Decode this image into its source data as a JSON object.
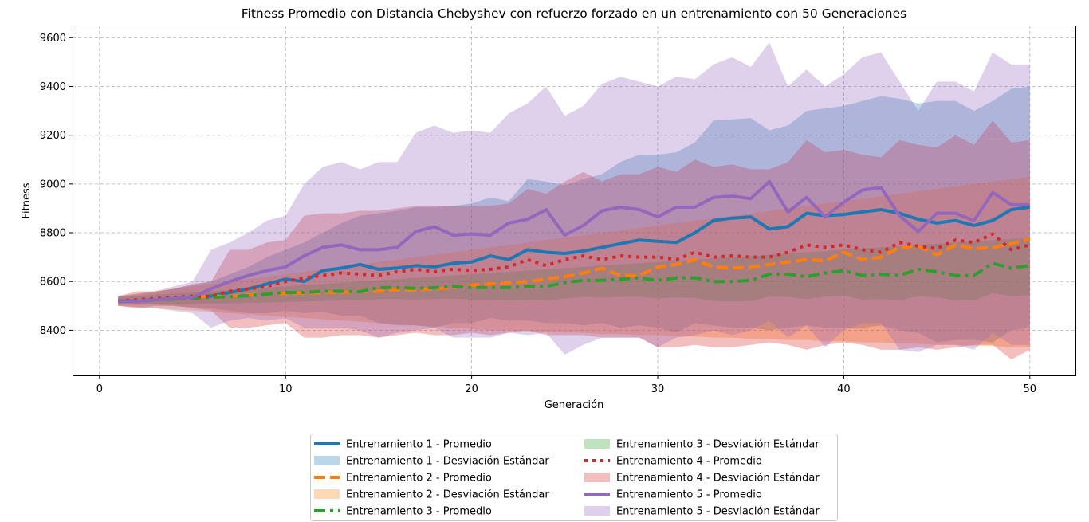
{
  "chart_data": {
    "type": "line",
    "title": "Fitness Promedio con Distancia Chebyshev con refuerzo forzado en un entrenamiento con 50 Generaciones",
    "xlabel": "Generación",
    "ylabel": "Fitness",
    "xlim": [
      -1.45,
      52.45
    ],
    "ylim": [
      8215,
      9650
    ],
    "xticks": [
      0,
      10,
      20,
      30,
      40,
      50
    ],
    "xtick_labels": [
      "0",
      "10",
      "20",
      "30",
      "40",
      "50"
    ],
    "yticks": [
      8400,
      8600,
      8800,
      9000,
      9200,
      9400,
      9600
    ],
    "ytick_labels": [
      "8400",
      "8600",
      "8800",
      "9000",
      "9200",
      "9400",
      "9600"
    ],
    "grid": true,
    "legend_position": "bottom-center-outside",
    "x": [
      1,
      2,
      3,
      4,
      5,
      6,
      7,
      8,
      9,
      10,
      11,
      12,
      13,
      14,
      15,
      16,
      17,
      18,
      19,
      20,
      21,
      22,
      23,
      24,
      25,
      26,
      27,
      28,
      29,
      30,
      31,
      32,
      33,
      34,
      35,
      36,
      37,
      38,
      39,
      40,
      41,
      42,
      43,
      44,
      45,
      46,
      47,
      48,
      49,
      50
    ],
    "series": [
      {
        "name": "Entrenamiento 1 - Promedio",
        "std_label": "Entrenamiento 1 - Desviación Estándar",
        "color": "#1f77b4",
        "dash": "solid",
        "mean": [
          8520,
          8520,
          8525,
          8530,
          8535,
          8540,
          8555,
          8570,
          8590,
          8610,
          8600,
          8645,
          8655,
          8670,
          8650,
          8655,
          8665,
          8660,
          8675,
          8680,
          8705,
          8690,
          8730,
          8720,
          8715,
          8725,
          8740,
          8755,
          8770,
          8765,
          8760,
          8800,
          8850,
          8860,
          8865,
          8815,
          8825,
          8880,
          8870,
          8875,
          8885,
          8895,
          8880,
          8855,
          8840,
          8850,
          8830,
          8850,
          8895,
          8905
        ],
        "upper": [
          8540,
          8545,
          8555,
          8570,
          8585,
          8600,
          8630,
          8660,
          8700,
          8730,
          8760,
          8800,
          8840,
          8870,
          8880,
          8890,
          8905,
          8905,
          8910,
          8920,
          8945,
          8930,
          9020,
          9010,
          8995,
          9020,
          9040,
          9090,
          9120,
          9120,
          9130,
          9170,
          9260,
          9265,
          9270,
          9220,
          9240,
          9300,
          9310,
          9320,
          9340,
          9360,
          9350,
          9330,
          9340,
          9340,
          9300,
          9340,
          9390,
          9400
        ],
        "lower": [
          8505,
          8505,
          8505,
          8500,
          8495,
          8490,
          8480,
          8470,
          8470,
          8480,
          8470,
          8475,
          8460,
          8460,
          8430,
          8420,
          8420,
          8410,
          8430,
          8430,
          8450,
          8440,
          8440,
          8430,
          8430,
          8420,
          8430,
          8410,
          8420,
          8410,
          8390,
          8430,
          8420,
          8410,
          8410,
          8400,
          8410,
          8420,
          8410,
          8410,
          8410,
          8420,
          8400,
          8390,
          8350,
          8360,
          8360,
          8350,
          8400,
          8410
        ]
      },
      {
        "name": "Entrenamiento 2 - Promedio",
        "std_label": "Entrenamiento 2 - Desviación Estándar",
        "color": "#ff7f0e",
        "dash": "dashed",
        "mean": [
          8520,
          8520,
          8525,
          8530,
          8535,
          8540,
          8540,
          8545,
          8548,
          8550,
          8552,
          8555,
          8555,
          8560,
          8560,
          8565,
          8565,
          8570,
          8575,
          8585,
          8590,
          8595,
          8600,
          8610,
          8620,
          8635,
          8655,
          8625,
          8625,
          8660,
          8670,
          8690,
          8660,
          8655,
          8660,
          8670,
          8680,
          8690,
          8685,
          8720,
          8690,
          8700,
          8740,
          8745,
          8710,
          8750,
          8735,
          8740,
          8755,
          8775
        ],
        "upper": [
          8540,
          8550,
          8560,
          8570,
          8580,
          8590,
          8600,
          8610,
          8620,
          8630,
          8640,
          8650,
          8660,
          8670,
          8680,
          8690,
          8700,
          8710,
          8720,
          8730,
          8740,
          8750,
          8760,
          8770,
          8780,
          8790,
          8800,
          8810,
          8820,
          8830,
          8840,
          8850,
          8860,
          8870,
          8880,
          8890,
          8900,
          8910,
          8920,
          8930,
          8940,
          8950,
          8960,
          8970,
          8980,
          8990,
          9000,
          9010,
          9020,
          9030
        ],
        "lower": [
          8500,
          8495,
          8490,
          8485,
          8480,
          8475,
          8470,
          8465,
          8460,
          8455,
          8450,
          8445,
          8440,
          8435,
          8430,
          8425,
          8420,
          8415,
          8410,
          8405,
          8400,
          8400,
          8395,
          8395,
          8390,
          8390,
          8385,
          8385,
          8380,
          8380,
          8375,
          8375,
          8370,
          8370,
          8365,
          8365,
          8360,
          8360,
          8355,
          8355,
          8350,
          8350,
          8345,
          8345,
          8340,
          8340,
          8335,
          8335,
          8330,
          8330
        ]
      },
      {
        "name": "Entrenamiento 3 - Promedio",
        "std_label": "Entrenamiento 3 - Desviación Estándar",
        "color": "#2ca02c",
        "dash": "dashdot",
        "mean": [
          8520,
          8520,
          8525,
          8528,
          8532,
          8535,
          8538,
          8542,
          8548,
          8555,
          8555,
          8560,
          8560,
          8558,
          8575,
          8575,
          8572,
          8575,
          8580,
          8575,
          8575,
          8575,
          8580,
          8580,
          8595,
          8605,
          8605,
          8610,
          8615,
          8605,
          8615,
          8615,
          8600,
          8600,
          8605,
          8630,
          8630,
          8620,
          8635,
          8645,
          8625,
          8630,
          8625,
          8650,
          8640,
          8625,
          8625,
          8675,
          8655,
          8665
        ],
        "upper": [
          8535,
          8540,
          8545,
          8550,
          8555,
          8560,
          8565,
          8570,
          8575,
          8580,
          8585,
          8590,
          8595,
          8600,
          8605,
          8610,
          8615,
          8620,
          8625,
          8630,
          8635,
          8640,
          8645,
          8650,
          8655,
          8660,
          8665,
          8670,
          8675,
          8680,
          8685,
          8690,
          8695,
          8700,
          8705,
          8710,
          8715,
          8720,
          8725,
          8730,
          8735,
          8740,
          8745,
          8750,
          8755,
          8760,
          8765,
          8770,
          8775,
          8780
        ],
        "lower": [
          8505,
          8505,
          8505,
          8506,
          8508,
          8510,
          8510,
          8512,
          8514,
          8516,
          8518,
          8520,
          8522,
          8522,
          8528,
          8528,
          8526,
          8528,
          8530,
          8526,
          8524,
          8522,
          8524,
          8522,
          8530,
          8536,
          8534,
          8536,
          8538,
          8530,
          8534,
          8532,
          8520,
          8518,
          8520,
          8538,
          8536,
          8528,
          8538,
          8542,
          8526,
          8528,
          8522,
          8540,
          8534,
          8524,
          8522,
          8552,
          8540,
          8544
        ]
      },
      {
        "name": "Entrenamiento 4 - Promedio",
        "std_label": "Entrenamiento 4 - Desviación Estándar",
        "color": "#d62728",
        "dash": "dotted",
        "mean": [
          8520,
          8525,
          8530,
          8535,
          8540,
          8540,
          8560,
          8570,
          8580,
          8600,
          8615,
          8625,
          8635,
          8630,
          8625,
          8640,
          8650,
          8640,
          8650,
          8645,
          8650,
          8660,
          8690,
          8665,
          8690,
          8705,
          8690,
          8705,
          8700,
          8700,
          8690,
          8720,
          8700,
          8705,
          8700,
          8700,
          8720,
          8750,
          8740,
          8750,
          8730,
          8720,
          8760,
          8745,
          8735,
          8770,
          8760,
          8795,
          8730,
          8750
        ],
        "upper": [
          8540,
          8560,
          8560,
          8570,
          8590,
          8600,
          8730,
          8730,
          8760,
          8770,
          8870,
          8880,
          8880,
          8890,
          8890,
          8900,
          8910,
          8910,
          8910,
          8910,
          8910,
          8920,
          8980,
          8960,
          9010,
          9050,
          9010,
          9040,
          9040,
          9070,
          9050,
          9100,
          9070,
          9080,
          9060,
          9060,
          9090,
          9180,
          9130,
          9140,
          9120,
          9110,
          9180,
          9160,
          9150,
          9200,
          9160,
          9260,
          9170,
          9180
        ],
        "lower": [
          8500,
          8490,
          8500,
          8500,
          8490,
          8480,
          8410,
          8410,
          8420,
          8430,
          8370,
          8370,
          8380,
          8380,
          8370,
          8380,
          8390,
          8380,
          8380,
          8390,
          8380,
          8390,
          8400,
          8380,
          8380,
          8380,
          8370,
          8370,
          8370,
          8330,
          8330,
          8340,
          8330,
          8330,
          8340,
          8350,
          8340,
          8320,
          8340,
          8350,
          8340,
          8320,
          8320,
          8330,
          8320,
          8330,
          8340,
          8340,
          8280,
          8320
        ]
      },
      {
        "name": "Entrenamiento 5 - Promedio",
        "std_label": "Entrenamiento 5 - Desviación Estándar",
        "color": "#9467bd",
        "dash": "solid",
        "mean": [
          8520,
          8520,
          8525,
          8530,
          8535,
          8570,
          8600,
          8625,
          8645,
          8660,
          8705,
          8740,
          8750,
          8730,
          8730,
          8740,
          8805,
          8825,
          8790,
          8795,
          8790,
          8840,
          8855,
          8895,
          8790,
          8830,
          8890,
          8905,
          8895,
          8865,
          8905,
          8905,
          8945,
          8950,
          8940,
          9010,
          8885,
          8945,
          8865,
          8925,
          8975,
          8985,
          8870,
          8805,
          8880,
          8880,
          8850,
          8965,
          8915,
          8915
        ],
        "upper": [
          8540,
          8550,
          8560,
          8580,
          8600,
          8730,
          8760,
          8800,
          8850,
          8870,
          9000,
          9070,
          9090,
          9060,
          9090,
          9090,
          9210,
          9240,
          9210,
          9220,
          9210,
          9290,
          9330,
          9400,
          9280,
          9320,
          9410,
          9440,
          9420,
          9400,
          9440,
          9430,
          9490,
          9520,
          9480,
          9580,
          9400,
          9470,
          9400,
          9450,
          9520,
          9540,
          9420,
          9300,
          9420,
          9420,
          9380,
          9540,
          9490,
          9490
        ],
        "lower": [
          8500,
          8495,
          8490,
          8480,
          8470,
          8410,
          8440,
          8450,
          8440,
          8450,
          8410,
          8410,
          8410,
          8400,
          8370,
          8390,
          8400,
          8410,
          8370,
          8370,
          8370,
          8390,
          8380,
          8390,
          8300,
          8340,
          8370,
          8370,
          8370,
          8330,
          8370,
          8380,
          8400,
          8380,
          8400,
          8440,
          8370,
          8420,
          8330,
          8400,
          8430,
          8430,
          8320,
          8310,
          8340,
          8340,
          8320,
          8390,
          8340,
          8340
        ]
      }
    ]
  }
}
